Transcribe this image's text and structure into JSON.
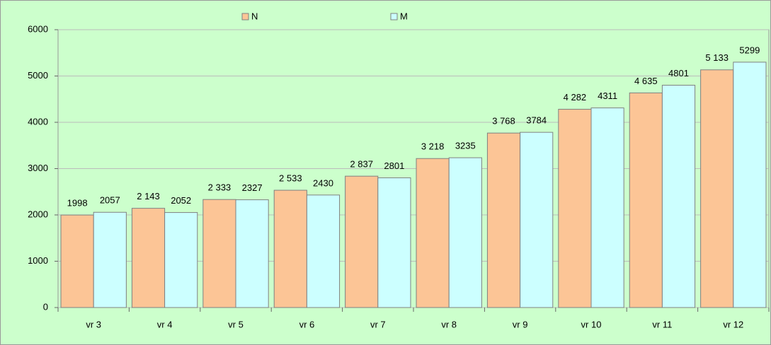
{
  "chart_data": {
    "type": "bar",
    "categories": [
      "vr 3",
      "vr 4",
      "vr 5",
      "vr 6",
      "vr 7",
      "vr 8",
      "vr 9",
      "vr 10",
      "vr 11",
      "vr 12"
    ],
    "series": [
      {
        "name": "N",
        "color": "#fcc596",
        "values": [
          1998,
          2143,
          2333,
          2533,
          2837,
          3218,
          3768,
          4282,
          4635,
          5133
        ],
        "value_labels": [
          "1998",
          "2 143",
          "2 333",
          "2 533",
          "2 837",
          "3 218",
          "3 768",
          "4 282",
          "4 635",
          "5 133"
        ]
      },
      {
        "name": "M",
        "color": "#ccffff",
        "values": [
          2057,
          2052,
          2327,
          2430,
          2801,
          3235,
          3784,
          4311,
          4801,
          5299
        ]
      }
    ],
    "ylim": [
      0,
      6000
    ],
    "yticks": [
      0,
      1000,
      2000,
      3000,
      4000,
      5000,
      6000
    ],
    "grid": true,
    "legend": "top"
  }
}
